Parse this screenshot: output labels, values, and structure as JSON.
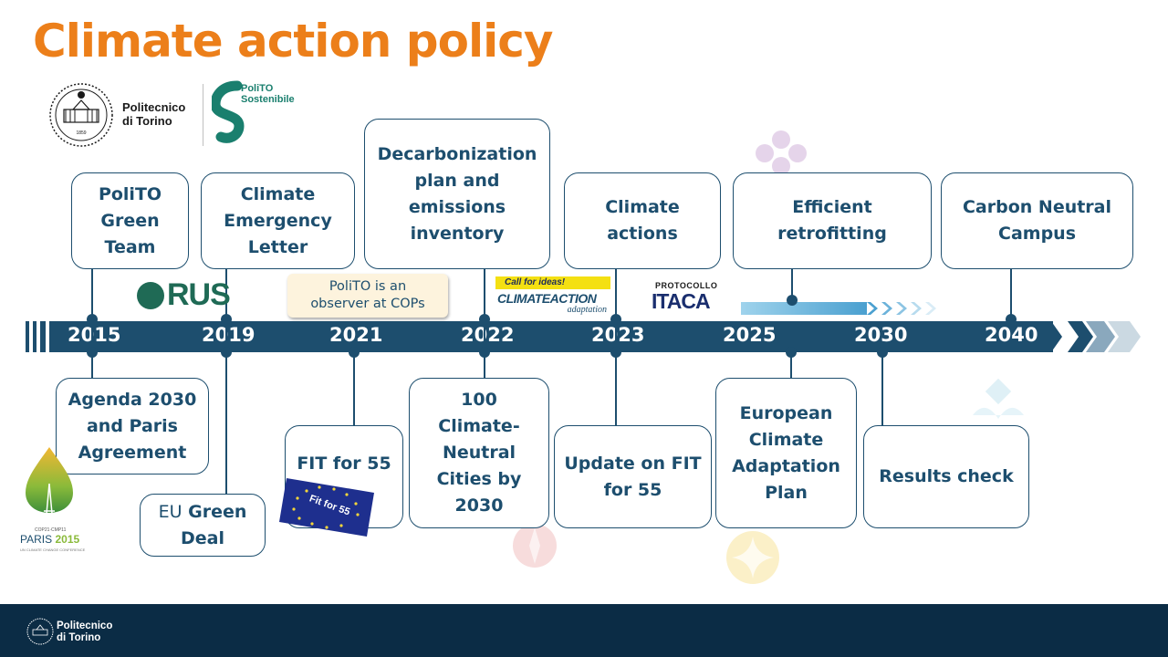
{
  "title": "Climate action policy",
  "logos": {
    "polito_name_line1": "Politecnico",
    "polito_name_line2": "di Torino",
    "polito_seal_year": "1859",
    "sostenibile_line1": "PoliTO",
    "sostenibile_line2": "Sostenibile"
  },
  "timeline": {
    "years": [
      "2015",
      "2019",
      "2021",
      "2022",
      "2023",
      "2025",
      "2030",
      "2040"
    ]
  },
  "top_boxes": {
    "b1": [
      "PoliTO",
      "Green",
      "Team"
    ],
    "b2": [
      "Climate",
      "Emergency",
      "Letter"
    ],
    "b3": [
      "Decarbonization",
      "plan and",
      "emissions",
      "inventory"
    ],
    "b4": [
      "Climate",
      "actions"
    ],
    "b5": [
      "Efficient",
      "retrofitting"
    ],
    "b6": [
      "Carbon Neutral",
      "Campus"
    ]
  },
  "bottom_boxes": {
    "b1": [
      "Agenda 2030",
      "and Paris",
      "Agreement"
    ],
    "b2_plain": "EU",
    "b2_bold": "Green",
    "b2_line2": "Deal",
    "b3": "FIT for 55",
    "b4": [
      "100",
      "Climate-",
      "Neutral",
      "Cities by",
      "2030"
    ],
    "b5": [
      "Update on FIT",
      "for 55"
    ],
    "b6": [
      "European",
      "Climate",
      "Adaptation",
      "Plan"
    ],
    "b7": "Results check"
  },
  "cop_note": [
    "PoliTO is an",
    "observer at COPs"
  ],
  "images": {
    "rus_text": "RUS",
    "call_for_ideas": "Call for ideas!",
    "climate_action_main": "CLIMATEACTION",
    "climate_action_sub": "adaptation",
    "itaca_small": "PROTOCOLLO",
    "itaca_big": "ITACA",
    "fit_image_text": "Fit for 55",
    "paris_cop": "COP21·CMP11",
    "paris_city": "PARIS",
    "paris_year": "2015",
    "paris_conf": "UN CLIMATE CHANGE CONFERENCE"
  },
  "footer": {
    "line1": "Politecnico",
    "line2": "di Torino"
  },
  "colors": {
    "title_orange": "#ec7f1a",
    "dark_blue": "#1d4e6e",
    "footer_navy": "#0b2c45"
  }
}
